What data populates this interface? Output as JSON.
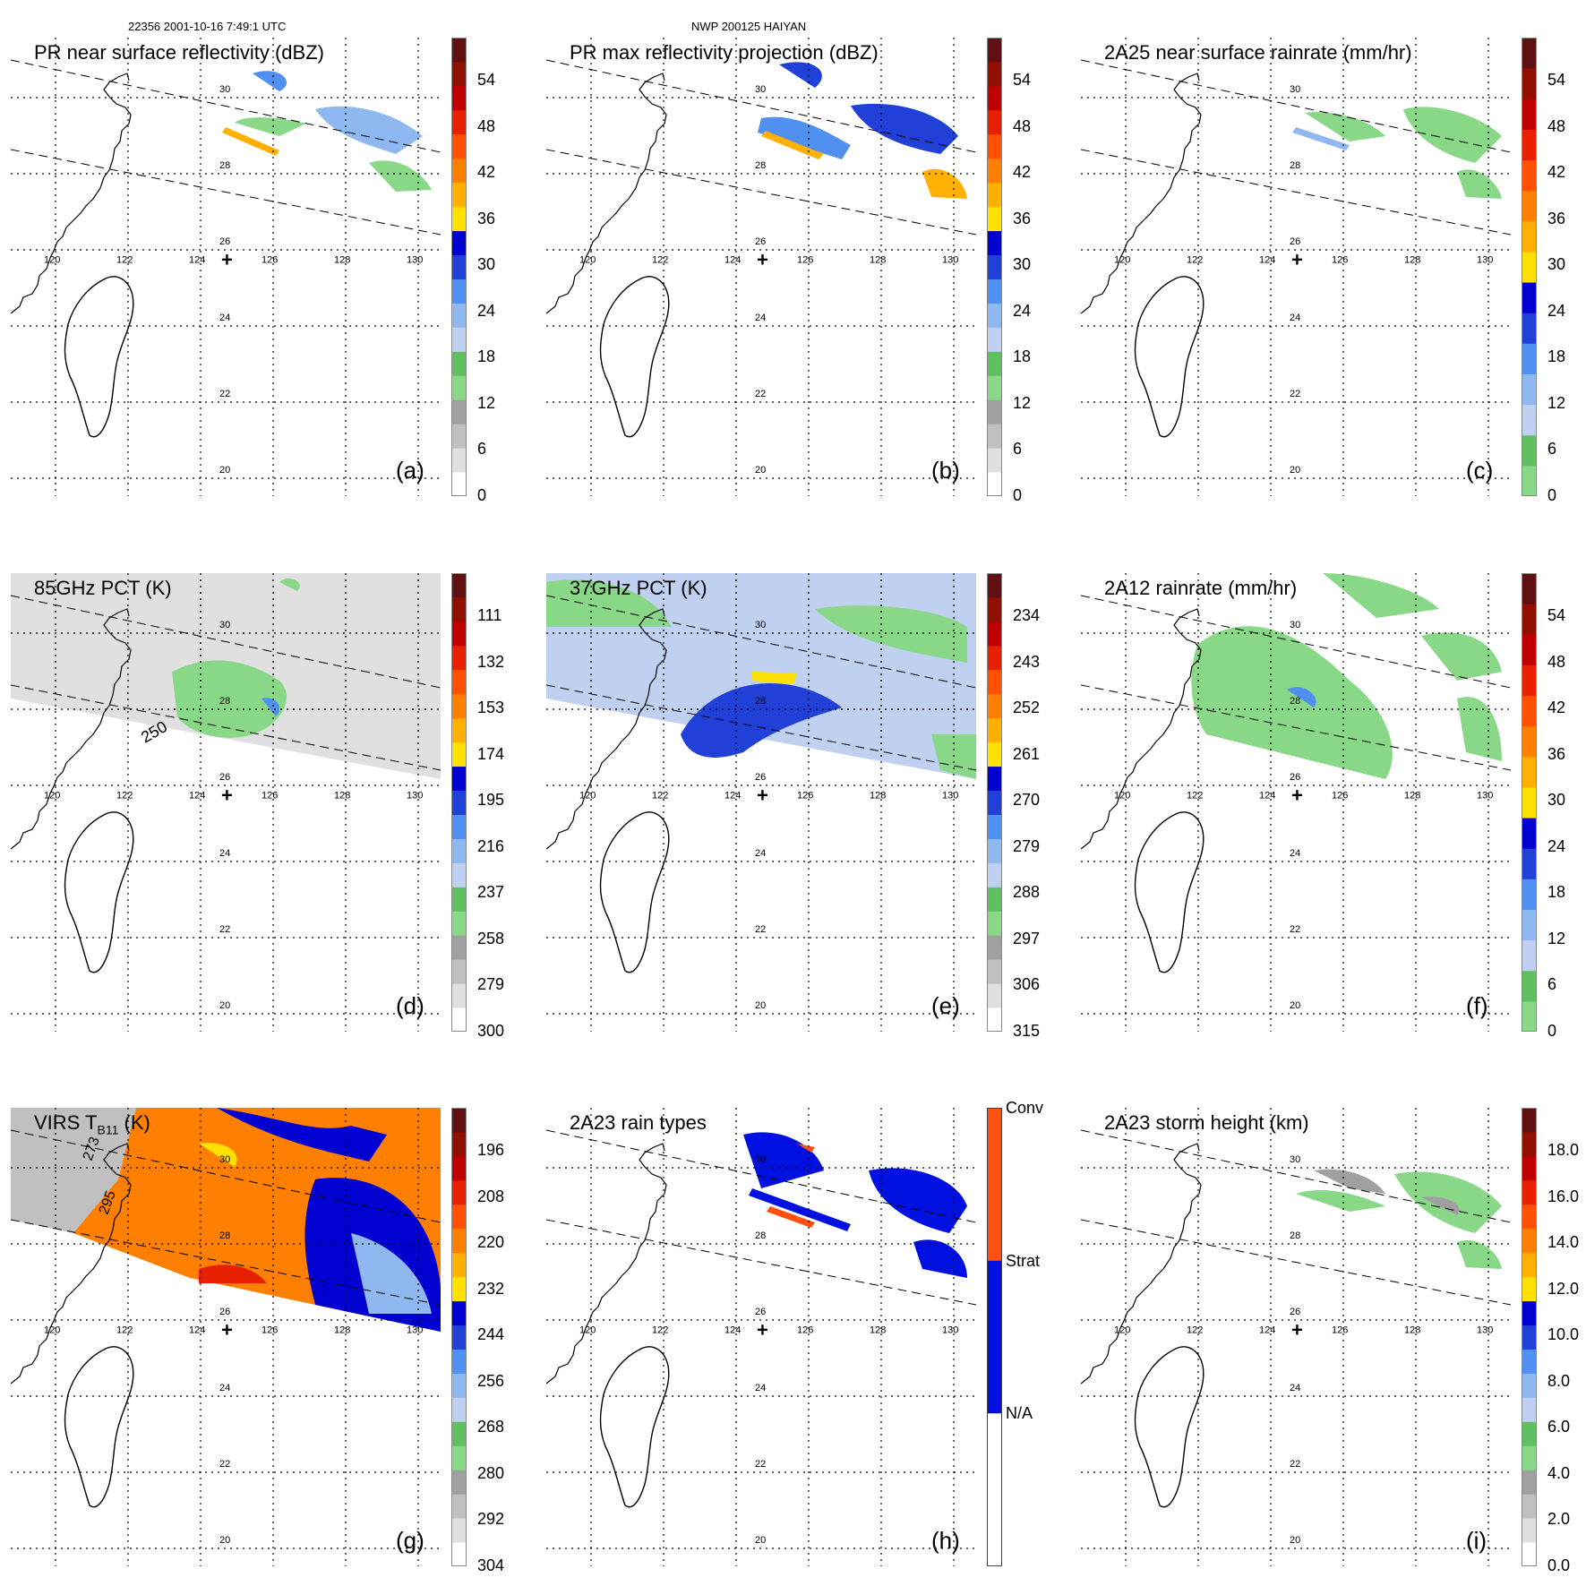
{
  "header": {
    "orbit_time": "22356 2001-10-16 7:49:1 UTC",
    "storm": "NWP 200125 HAIYAN"
  },
  "map": {
    "lat_labels": [
      "30",
      "28",
      "26",
      "24",
      "22",
      "20"
    ],
    "lon_labels": [
      "120",
      "122",
      "124",
      "126",
      "128",
      "130"
    ],
    "center_marker": "+",
    "contour_labels_d": [
      "250"
    ],
    "contour_labels_g": [
      "273",
      "295"
    ]
  },
  "panels": [
    {
      "id": "a",
      "label": "(a)",
      "title": "PR near surface reflectivity (dBZ)",
      "colorbar": {
        "ticks": [
          "54",
          "48",
          "42",
          "36",
          "30",
          "24",
          "18",
          "12",
          "6",
          "0"
        ],
        "colors": [
          "#ffffff",
          "#e0e0e0",
          "#c0c0c0",
          "#a0a0a0",
          "#88d888",
          "#60c060",
          "#c0d0f0",
          "#90b8f0",
          "#5090f0",
          "#2040d8",
          "#0000d0",
          "#ffe000",
          "#ffb000",
          "#ff8000",
          "#ff5000",
          "#e82000",
          "#c00000",
          "#901000",
          "#601010"
        ]
      }
    },
    {
      "id": "b",
      "label": "(b)",
      "title": "PR max reflectivity projection (dBZ)",
      "colorbar": {
        "ticks": [
          "54",
          "48",
          "42",
          "36",
          "30",
          "24",
          "18",
          "12",
          "6",
          "0"
        ],
        "colors": [
          "#ffffff",
          "#e0e0e0",
          "#c0c0c0",
          "#a0a0a0",
          "#88d888",
          "#60c060",
          "#c0d0f0",
          "#90b8f0",
          "#5090f0",
          "#2040d8",
          "#0000d0",
          "#ffe000",
          "#ffb000",
          "#ff8000",
          "#ff5000",
          "#e82000",
          "#c00000",
          "#901000",
          "#601010"
        ]
      }
    },
    {
      "id": "c",
      "label": "(c)",
      "title": "2A25 near surface rainrate (mm/hr)",
      "colorbar": {
        "ticks": [
          "54",
          "48",
          "42",
          "36",
          "30",
          "24",
          "18",
          "12",
          "6",
          "0"
        ],
        "colors": [
          "#88d888",
          "#60c060",
          "#c0d0f0",
          "#90b8f0",
          "#5090f0",
          "#2040d8",
          "#0000d0",
          "#ffe000",
          "#ffb000",
          "#ff8000",
          "#ff5000",
          "#e82000",
          "#c00000",
          "#901000",
          "#601010"
        ]
      }
    },
    {
      "id": "d",
      "label": "(d)",
      "title": "85GHz PCT (K)",
      "colorbar": {
        "ticks": [
          "111",
          "132",
          "153",
          "174",
          "195",
          "216",
          "237",
          "258",
          "279",
          "300"
        ],
        "colors": [
          "#ffffff",
          "#e0e0e0",
          "#c0c0c0",
          "#a0a0a0",
          "#88d888",
          "#60c060",
          "#c0d0f0",
          "#90b8f0",
          "#5090f0",
          "#2040d8",
          "#0000d0",
          "#ffe000",
          "#ffb000",
          "#ff8000",
          "#ff5000",
          "#e82000",
          "#c00000",
          "#901000",
          "#601010"
        ]
      }
    },
    {
      "id": "e",
      "label": "(e)",
      "title": "37GHz PCT (K)",
      "colorbar": {
        "ticks": [
          "234",
          "243",
          "252",
          "261",
          "270",
          "279",
          "288",
          "297",
          "306",
          "315"
        ],
        "colors": [
          "#ffffff",
          "#e0e0e0",
          "#c0c0c0",
          "#a0a0a0",
          "#88d888",
          "#60c060",
          "#c0d0f0",
          "#90b8f0",
          "#5090f0",
          "#2040d8",
          "#0000d0",
          "#ffe000",
          "#ffb000",
          "#ff8000",
          "#ff5000",
          "#e82000",
          "#c00000",
          "#901000",
          "#601010"
        ]
      }
    },
    {
      "id": "f",
      "label": "(f)",
      "title": "2A12 rainrate (mm/hr)",
      "colorbar": {
        "ticks": [
          "54",
          "48",
          "42",
          "36",
          "30",
          "24",
          "18",
          "12",
          "6",
          "0"
        ],
        "colors": [
          "#88d888",
          "#60c060",
          "#c0d0f0",
          "#90b8f0",
          "#5090f0",
          "#2040d8",
          "#0000d0",
          "#ffe000",
          "#ffb000",
          "#ff8000",
          "#ff5000",
          "#e82000",
          "#c00000",
          "#901000",
          "#601010"
        ]
      }
    },
    {
      "id": "g",
      "label": "(g)",
      "title": "VIRS T",
      "title_sub": "B11",
      "title_tail": " (K)",
      "colorbar": {
        "ticks": [
          "196",
          "208",
          "220",
          "232",
          "244",
          "256",
          "268",
          "280",
          "292",
          "304"
        ],
        "colors": [
          "#ffffff",
          "#e0e0e0",
          "#c0c0c0",
          "#a0a0a0",
          "#88d888",
          "#60c060",
          "#c0d0f0",
          "#90b8f0",
          "#5090f0",
          "#2040d8",
          "#0000d0",
          "#ffe000",
          "#ffb000",
          "#ff8000",
          "#ff5000",
          "#e82000",
          "#c00000",
          "#901000",
          "#601010"
        ]
      }
    },
    {
      "id": "h",
      "label": "(h)",
      "title": "2A23 rain types",
      "categorical_bar": {
        "labels": [
          "Conv",
          "Strat",
          "N/A"
        ],
        "colors": [
          "#ff5010",
          "#0010e0",
          "#ffffff"
        ]
      }
    },
    {
      "id": "i",
      "label": "(i)",
      "title": "2A23 storm height (km)",
      "colorbar": {
        "ticks": [
          "18.0",
          "16.0",
          "14.0",
          "12.0",
          "10.0",
          "8.0",
          "6.0",
          "4.0",
          "2.0",
          "0.0"
        ],
        "colors": [
          "#ffffff",
          "#e0e0e0",
          "#c0c0c0",
          "#a0a0a0",
          "#88d888",
          "#60c060",
          "#c0d0f0",
          "#90b8f0",
          "#5090f0",
          "#2040d8",
          "#0000d0",
          "#ffe000",
          "#ffb000",
          "#ff8000",
          "#ff5000",
          "#e82000",
          "#c00000",
          "#901000",
          "#601010"
        ]
      }
    }
  ]
}
